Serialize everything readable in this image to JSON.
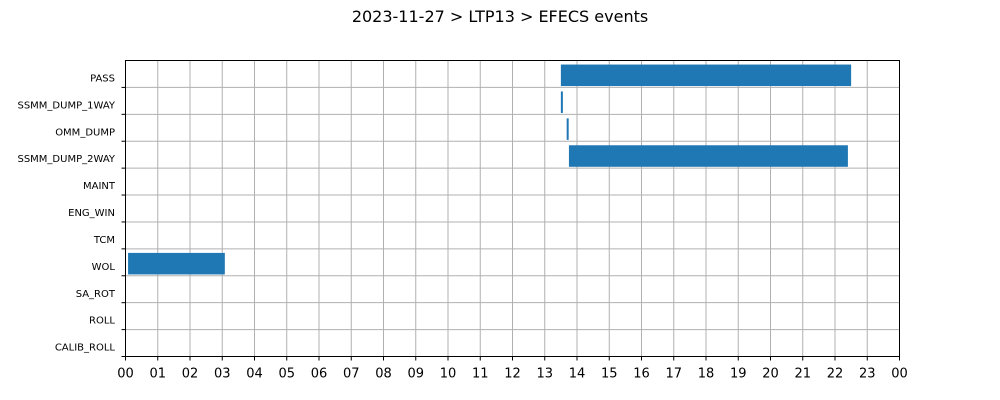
{
  "chart_data": {
    "type": "bar",
    "orientation": "horizontal-timeline",
    "title": "2023-11-27 > LTP13 > EFECS events",
    "xlabel": "",
    "ylabel": "",
    "xlim": [
      0,
      24
    ],
    "x_tick_labels": [
      "00",
      "01",
      "02",
      "03",
      "04",
      "05",
      "06",
      "07",
      "08",
      "09",
      "10",
      "11",
      "12",
      "13",
      "14",
      "15",
      "16",
      "17",
      "18",
      "19",
      "20",
      "21",
      "22",
      "23",
      "00"
    ],
    "categories": [
      "PASS",
      "SSMM_DUMP_1WAY",
      "OMM_DUMP",
      "SSMM_DUMP_2WAY",
      "MAINT",
      "ENG_WIN",
      "TCM",
      "WOL",
      "SA_ROT",
      "ROLL",
      "CALIB_ROLL"
    ],
    "grid": true,
    "color": "#1f77b4",
    "events": [
      {
        "category": "PASS",
        "start": 13.5,
        "end": 22.5
      },
      {
        "category": "SSMM_DUMP_1WAY",
        "start": 13.5,
        "end": 13.55
      },
      {
        "category": "OMM_DUMP",
        "start": 13.68,
        "end": 13.74
      },
      {
        "category": "SSMM_DUMP_2WAY",
        "start": 13.75,
        "end": 22.4
      },
      {
        "category": "WOL",
        "start": 0.08,
        "end": 3.08
      }
    ]
  }
}
